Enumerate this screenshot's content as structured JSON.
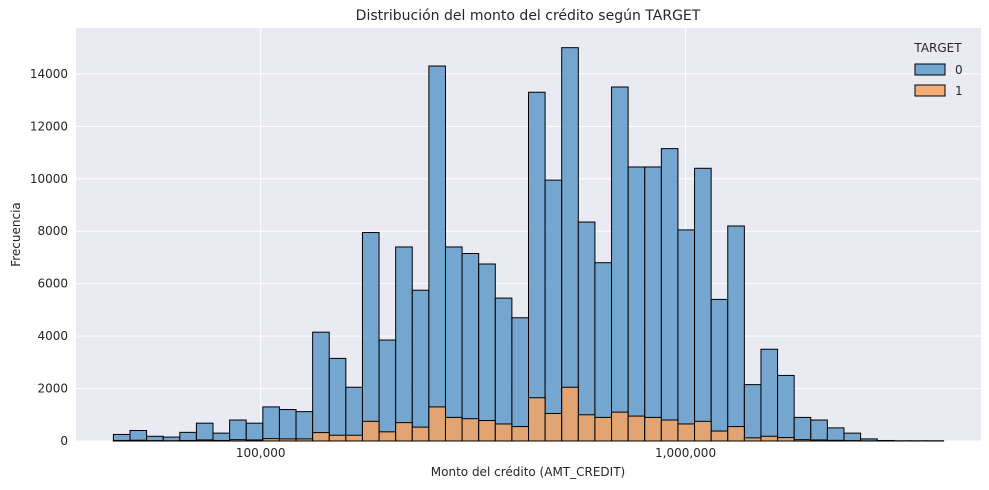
{
  "chart_data": {
    "type": "histogram",
    "title": "Distribución del monto del crédito según TARGET",
    "xlabel": "Monto del crédito (AMT_CREDIT)",
    "ylabel": "Frecuencia",
    "x_scale": "log",
    "x_bin_start": 45000,
    "x_bin_end": 4050000,
    "bin_count": 50,
    "ylim": [
      0,
      15750
    ],
    "x_ticks": [
      {
        "value": 100000,
        "label": "100,000"
      },
      {
        "value": 1000000,
        "label": "1,000,000"
      }
    ],
    "y_ticks": [
      {
        "value": 0,
        "label": "0"
      },
      {
        "value": 2000,
        "label": "2000"
      },
      {
        "value": 4000,
        "label": "4000"
      },
      {
        "value": 6000,
        "label": "6000"
      },
      {
        "value": 8000,
        "label": "8000"
      },
      {
        "value": 10000,
        "label": "10000"
      },
      {
        "value": 12000,
        "label": "12000"
      },
      {
        "value": 14000,
        "label": "14000"
      }
    ],
    "grid": true,
    "legend": {
      "title": "TARGET",
      "position": "top-right"
    },
    "series": [
      {
        "name": "0",
        "color": "#5f9ac9",
        "values": [
          250,
          400,
          180,
          150,
          330,
          680,
          300,
          800,
          680,
          1300,
          1200,
          1120,
          4150,
          3150,
          2050,
          7950,
          3850,
          7400,
          5750,
          14300,
          7400,
          7150,
          6750,
          5450,
          4700,
          13300,
          9950,
          15000,
          8350,
          6800,
          13500,
          10450,
          10450,
          11150,
          8050,
          10400,
          5400,
          8200,
          2150,
          3500,
          2500,
          900,
          800,
          500,
          300,
          80,
          20,
          10,
          10,
          10
        ]
      },
      {
        "name": "1",
        "color": "#f4a362",
        "values": [
          20,
          30,
          15,
          10,
          20,
          40,
          20,
          50,
          40,
          90,
          80,
          80,
          320,
          220,
          220,
          750,
          350,
          700,
          530,
          1300,
          900,
          850,
          780,
          650,
          550,
          1650,
          1050,
          2050,
          1000,
          900,
          1100,
          950,
          900,
          800,
          650,
          750,
          380,
          550,
          120,
          180,
          130,
          50,
          40,
          25,
          15,
          5,
          0,
          0,
          0,
          0
        ]
      }
    ]
  }
}
